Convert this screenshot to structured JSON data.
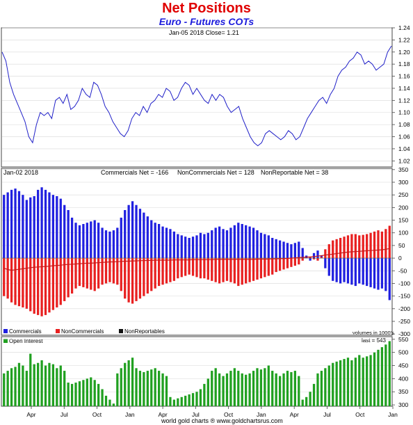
{
  "header": {
    "title": "Net Positions",
    "subtitle": "Euro - Futures COTs"
  },
  "footer": "world gold charts ® www.goldchartsrus.com",
  "chart_data": [
    {
      "id": "price",
      "type": "line",
      "annotation": "Jan-05  2018   Close= 1.21",
      "y_ticks": [
        "1.02",
        "1.04",
        "1.06",
        "1.08",
        "1.10",
        "1.12",
        "1.14",
        "1.16",
        "1.18",
        "1.20",
        "1.22",
        "1.24"
      ],
      "ylim": [
        1.01,
        1.24
      ],
      "grid": true,
      "line_color": "#2020c8",
      "x_ticks": [
        "Apr",
        "Jul",
        "Oct",
        "Jan",
        "Apr",
        "Jul",
        "Oct",
        "Jan",
        "Apr",
        "Jul",
        "Oct",
        "Jan"
      ],
      "series": [
        {
          "values": [
            1.2,
            1.185,
            1.15,
            1.13,
            1.115,
            1.1,
            1.085,
            1.06,
            1.05,
            1.08,
            1.1,
            1.095,
            1.1,
            1.09,
            1.12,
            1.125,
            1.115,
            1.13,
            1.105,
            1.11,
            1.12,
            1.14,
            1.13,
            1.125,
            1.15,
            1.145,
            1.13,
            1.11,
            1.1,
            1.085,
            1.075,
            1.065,
            1.06,
            1.07,
            1.09,
            1.1,
            1.095,
            1.11,
            1.1,
            1.115,
            1.12,
            1.13,
            1.125,
            1.14,
            1.135,
            1.12,
            1.125,
            1.14,
            1.15,
            1.145,
            1.13,
            1.14,
            1.13,
            1.12,
            1.115,
            1.13,
            1.12,
            1.13,
            1.125,
            1.11,
            1.1,
            1.105,
            1.11,
            1.09,
            1.075,
            1.06,
            1.05,
            1.045,
            1.05,
            1.065,
            1.07,
            1.065,
            1.06,
            1.055,
            1.06,
            1.07,
            1.065,
            1.055,
            1.06,
            1.075,
            1.09,
            1.1,
            1.11,
            1.12,
            1.125,
            1.115,
            1.13,
            1.14,
            1.16,
            1.17,
            1.175,
            1.185,
            1.19,
            1.2,
            1.195,
            1.18,
            1.185,
            1.18,
            1.17,
            1.175,
            1.18,
            1.2,
            1.21
          ]
        }
      ]
    },
    {
      "id": "net_positions",
      "type": "bar",
      "annotation": "Jan-02  2018",
      "stats": [
        "Commercials Net = -166",
        "NonCommercials Net = 128",
        "NonReportable Net = 38"
      ],
      "y_ticks": [
        "-300",
        "-250",
        "-200",
        "-150",
        "-100",
        "-50",
        "0",
        "50",
        "100",
        "150",
        "200",
        "250",
        "300",
        "350"
      ],
      "ylim": [
        -305,
        355
      ],
      "volumes_note": "volumes in 1000's",
      "legend": [
        {
          "label": "Commercials",
          "color": "#2020e0"
        },
        {
          "label": "NonCommercials",
          "color": "#e82020"
        },
        {
          "label": "NonReportables",
          "color": "#111111"
        }
      ],
      "series": [
        {
          "name": "Commercials",
          "color": "#2020e0",
          "values": [
            250,
            260,
            270,
            275,
            265,
            250,
            230,
            240,
            245,
            270,
            280,
            270,
            260,
            250,
            245,
            235,
            210,
            190,
            160,
            140,
            130,
            135,
            140,
            145,
            150,
            140,
            120,
            110,
            105,
            110,
            120,
            160,
            190,
            210,
            225,
            210,
            195,
            180,
            165,
            150,
            140,
            135,
            125,
            120,
            115,
            105,
            95,
            90,
            85,
            80,
            85,
            90,
            100,
            95,
            100,
            110,
            120,
            125,
            115,
            110,
            120,
            130,
            140,
            135,
            130,
            125,
            120,
            110,
            100,
            95,
            90,
            80,
            75,
            70,
            65,
            60,
            55,
            60,
            65,
            40,
            10,
            -10,
            20,
            30,
            10,
            -40,
            -70,
            -90,
            -95,
            -100,
            -95,
            -100,
            -105,
            -110,
            -100,
            -105,
            -110,
            -115,
            -120,
            -125,
            -120,
            -130,
            -166
          ]
        },
        {
          "name": "NonCommercials",
          "color": "#e82020",
          "values": [
            -150,
            -160,
            -175,
            -185,
            -190,
            -195,
            -200,
            -210,
            -220,
            -225,
            -230,
            -225,
            -215,
            -205,
            -195,
            -185,
            -170,
            -155,
            -140,
            -120,
            -110,
            -115,
            -120,
            -125,
            -130,
            -120,
            -105,
            -100,
            -95,
            -100,
            -105,
            -130,
            -160,
            -175,
            -180,
            -170,
            -160,
            -150,
            -140,
            -130,
            -120,
            -110,
            -105,
            -100,
            -95,
            -90,
            -80,
            -75,
            -70,
            -65,
            -70,
            -75,
            -80,
            -80,
            -85,
            -90,
            -95,
            -100,
            -95,
            -90,
            -95,
            -100,
            -110,
            -105,
            -100,
            -95,
            -90,
            -85,
            -80,
            -75,
            -70,
            -65,
            -55,
            -50,
            -45,
            -40,
            -35,
            -30,
            -25,
            -10,
            0,
            5,
            -5,
            -10,
            5,
            35,
            55,
            70,
            75,
            80,
            85,
            90,
            95,
            95,
            90,
            92,
            95,
            100,
            105,
            110,
            105,
            115,
            128
          ]
        },
        {
          "name": "Net line",
          "color": "#c81818",
          "values": [
            -40,
            -45,
            -48,
            -46,
            -44,
            -42,
            -40,
            -38,
            -36,
            -35,
            -34,
            -33,
            -32,
            -30,
            -29,
            -28,
            -26,
            -25,
            -24,
            -23,
            -22,
            -21,
            -20,
            -20,
            -19,
            -18,
            -17,
            -16,
            -15,
            -15,
            -14,
            -13,
            -12,
            -12,
            -11,
            -11,
            -10,
            -10,
            -9,
            -9,
            -8,
            -8,
            -8,
            -8,
            -8,
            -7,
            -7,
            -7,
            -7,
            -7,
            -6,
            -6,
            -6,
            -6,
            -6,
            -6,
            -5,
            -5,
            -5,
            -5,
            -5,
            -5,
            -5,
            -5,
            -5,
            -5,
            -5,
            -4,
            -4,
            -4,
            -4,
            -3,
            -3,
            -2,
            -2,
            -1,
            0,
            1,
            2,
            3,
            4,
            5,
            6,
            8,
            10,
            12,
            14,
            16,
            18,
            20,
            22,
            24,
            25,
            26,
            27,
            28,
            29,
            30,
            31,
            32,
            33,
            35,
            38
          ]
        }
      ]
    },
    {
      "id": "open_interest",
      "type": "bar",
      "annotation": "last = 543",
      "legend": [
        {
          "label": "Open Interest",
          "color": "#20a020"
        }
      ],
      "y_ticks": [
        "300",
        "350",
        "400",
        "450",
        "500",
        "550"
      ],
      "ylim": [
        295,
        560
      ],
      "x_ticks": [
        "Apr",
        "Jul",
        "Oct",
        "Jan",
        "Apr",
        "Jul",
        "Oct",
        "Jan",
        "Apr",
        "Jul",
        "Oct",
        "Jan"
      ],
      "color": "#20a020",
      "values": [
        420,
        430,
        440,
        445,
        460,
        450,
        430,
        495,
        455,
        460,
        470,
        450,
        460,
        455,
        440,
        450,
        430,
        385,
        380,
        385,
        390,
        395,
        400,
        405,
        395,
        380,
        360,
        335,
        320,
        305,
        420,
        440,
        460,
        470,
        480,
        440,
        430,
        425,
        430,
        435,
        440,
        430,
        420,
        410,
        330,
        320,
        325,
        330,
        335,
        340,
        345,
        350,
        360,
        380,
        400,
        430,
        440,
        420,
        410,
        420,
        430,
        440,
        430,
        420,
        415,
        420,
        430,
        440,
        435,
        440,
        450,
        430,
        420,
        410,
        420,
        430,
        425,
        430,
        410,
        320,
        330,
        350,
        380,
        420,
        430,
        440,
        450,
        460,
        465,
        470,
        475,
        480,
        470,
        480,
        490,
        480,
        485,
        490,
        500,
        510,
        520,
        530,
        543
      ]
    }
  ]
}
